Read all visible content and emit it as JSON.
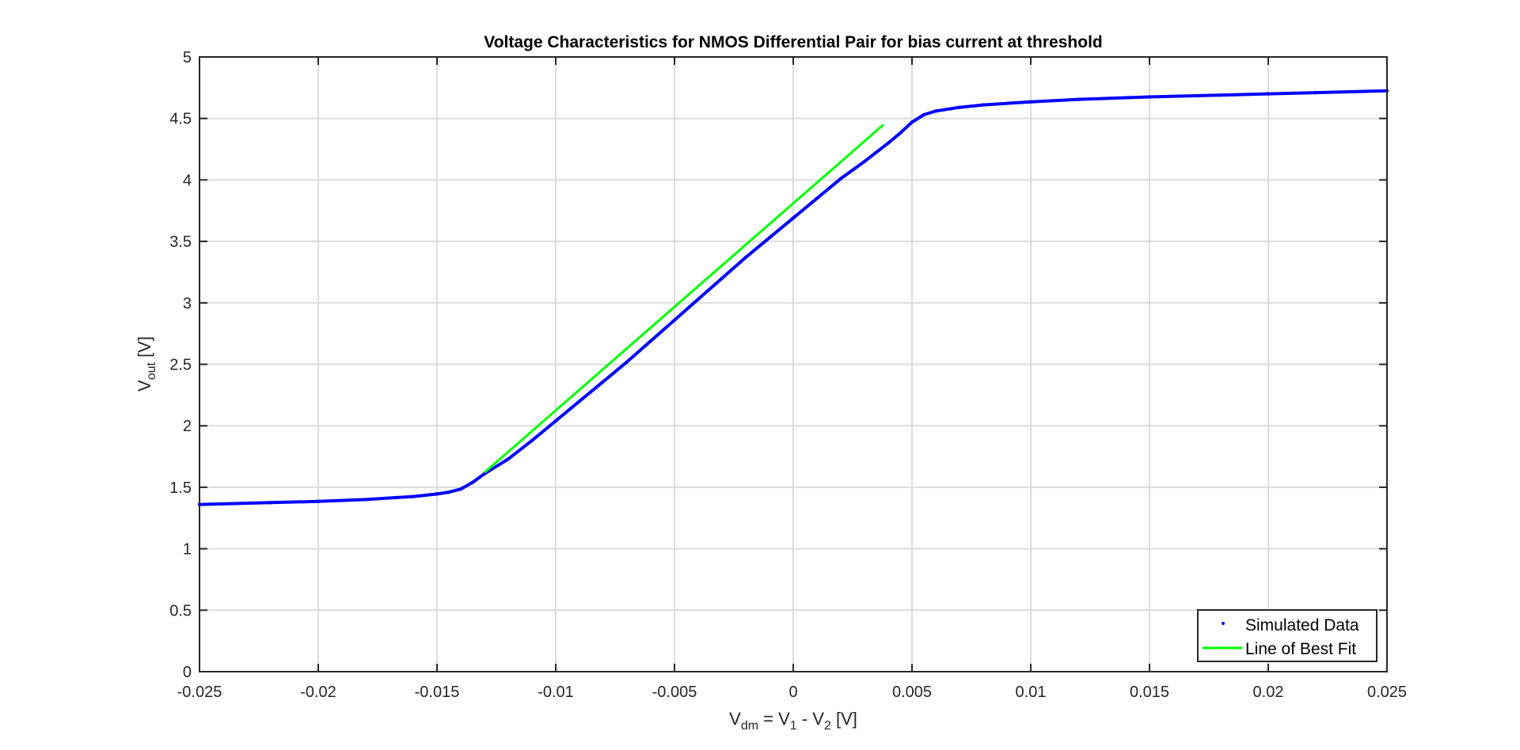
{
  "chart_data": {
    "type": "scatter",
    "title": "Voltage Characteristics for NMOS Differential Pair for bias current at threshold",
    "xlabel": {
      "main": "V",
      "sub": "dm",
      "rest": " = V",
      "sub2": "1",
      "rest2": " - V",
      "sub3": "2",
      "unit": " [V]"
    },
    "ylabel": {
      "main": "V",
      "sub": "out",
      "unit": " [V]"
    },
    "xlim": [
      -0.025,
      0.025
    ],
    "ylim": [
      0,
      5
    ],
    "xticks": [
      -0.025,
      -0.02,
      -0.015,
      -0.01,
      -0.005,
      0,
      0.005,
      0.01,
      0.015,
      0.02,
      0.025
    ],
    "xtick_labels": [
      "-0.025",
      "-0.02",
      "-0.015",
      "-0.01",
      "-0.005",
      "0",
      "0.005",
      "0.01",
      "0.015",
      "0.02",
      "0.025"
    ],
    "yticks": [
      0,
      0.5,
      1,
      1.5,
      2,
      2.5,
      3,
      3.5,
      4,
      4.5,
      5
    ],
    "ytick_labels": [
      "0",
      "0.5",
      "1",
      "1.5",
      "2",
      "2.5",
      "3",
      "3.5",
      "4",
      "4.5",
      "5"
    ],
    "grid": true,
    "legend_location": "bottom-right",
    "series": [
      {
        "name": "Simulated Data",
        "style": "points",
        "color": "#0000ff",
        "x": [
          -0.025,
          -0.022,
          -0.02,
          -0.018,
          -0.016,
          -0.015,
          -0.0145,
          -0.014,
          -0.0135,
          -0.013,
          -0.012,
          -0.011,
          -0.01,
          -0.009,
          -0.008,
          -0.007,
          -0.006,
          -0.005,
          -0.004,
          -0.003,
          -0.002,
          -0.001,
          0,
          0.001,
          0.002,
          0.003,
          0.004,
          0.0045,
          0.005,
          0.0055,
          0.006,
          0.007,
          0.008,
          0.01,
          0.012,
          0.015,
          0.018,
          0.02,
          0.022,
          0.025
        ],
        "y": [
          1.36,
          1.375,
          1.385,
          1.4,
          1.425,
          1.445,
          1.46,
          1.485,
          1.54,
          1.61,
          1.73,
          1.88,
          2.04,
          2.2,
          2.36,
          2.52,
          2.69,
          2.86,
          3.03,
          3.2,
          3.37,
          3.53,
          3.69,
          3.85,
          4.01,
          4.15,
          4.3,
          4.38,
          4.47,
          4.53,
          4.56,
          4.59,
          4.61,
          4.635,
          4.655,
          4.675,
          4.69,
          4.7,
          4.71,
          4.725
        ]
      },
      {
        "name": "Line of Best Fit",
        "style": "line",
        "color": "#00ff00",
        "x": [
          -0.013,
          0.0038
        ],
        "y": [
          1.62,
          4.45
        ]
      }
    ]
  }
}
